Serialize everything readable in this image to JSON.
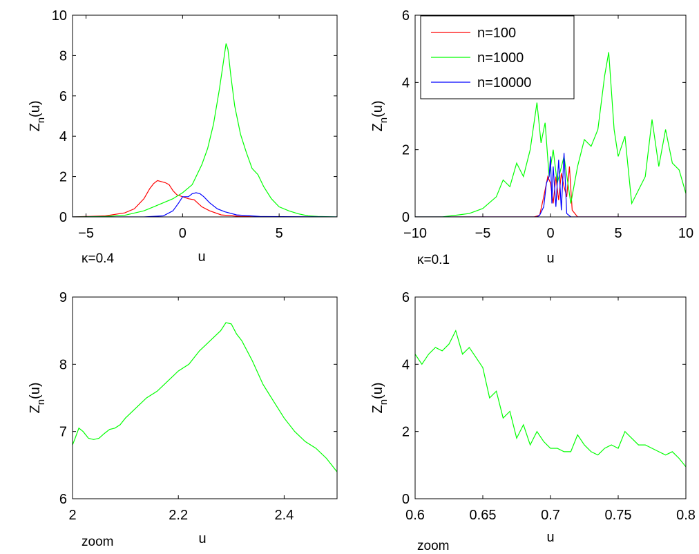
{
  "chart_data": [
    {
      "type": "line",
      "ylabel": "Z_n(u)",
      "xlabel": "u",
      "annotation": "κ=0.4",
      "xlim": [
        -5.7,
        8
      ],
      "ylim": [
        0,
        10
      ],
      "xticks": [
        -5,
        0,
        5
      ],
      "yticks": [
        0,
        2,
        4,
        6,
        8,
        10
      ],
      "grid": false,
      "series": [
        {
          "color": "#ff0000",
          "x": [
            -5.7,
            -4,
            -3,
            -2.5,
            -2,
            -1.7,
            -1.5,
            -1.3,
            -1.1,
            -0.9,
            -0.7,
            -0.5,
            -0.3,
            0,
            0.3,
            0.6,
            1,
            1.4,
            2,
            3,
            4
          ],
          "values": [
            0,
            0.05,
            0.2,
            0.4,
            0.9,
            1.4,
            1.65,
            1.8,
            1.75,
            1.7,
            1.6,
            1.3,
            1.1,
            1.0,
            0.9,
            0.85,
            0.5,
            0.3,
            0.1,
            0.02,
            0
          ]
        },
        {
          "color": "#00ff00",
          "x": [
            -5.7,
            -4,
            -3,
            -2,
            -1.5,
            -1,
            -0.5,
            0,
            0.5,
            1,
            1.3,
            1.6,
            1.9,
            2.1,
            2.25,
            2.35,
            2.5,
            2.7,
            3,
            3.3,
            3.6,
            3.9,
            4.2,
            4.6,
            5,
            5.5,
            6,
            6.5,
            7,
            8
          ],
          "values": [
            0,
            0.02,
            0.08,
            0.3,
            0.5,
            0.7,
            0.9,
            1.2,
            1.6,
            2.6,
            3.4,
            4.6,
            6.3,
            7.6,
            8.6,
            8.3,
            7.0,
            5.5,
            4.1,
            3.2,
            2.4,
            2.1,
            1.5,
            0.9,
            0.5,
            0.3,
            0.15,
            0.05,
            0.02,
            0
          ]
        },
        {
          "color": "#0000ff",
          "x": [
            -5.7,
            -2,
            -1,
            -0.5,
            -0.2,
            0,
            0.3,
            0.5,
            0.7,
            0.9,
            1.1,
            1.4,
            1.8,
            2.2,
            2.8,
            4,
            8
          ],
          "values": [
            0,
            0,
            0.05,
            0.3,
            0.7,
            1.0,
            1.0,
            1.15,
            1.2,
            1.15,
            1.0,
            0.7,
            0.4,
            0.25,
            0.1,
            0.02,
            0
          ]
        }
      ]
    },
    {
      "type": "line",
      "ylabel": "Z_n(u)",
      "xlabel": "u",
      "annotation": "κ=0.1",
      "xlim": [
        -10,
        10
      ],
      "ylim": [
        0,
        6
      ],
      "xticks": [
        -10,
        -5,
        0,
        5,
        10
      ],
      "yticks": [
        0,
        2,
        4,
        6
      ],
      "grid": false,
      "legend_position": "top-left",
      "series": [
        {
          "name": "n=100",
          "color": "#ff0000",
          "x": [
            -10,
            -1.2,
            -0.8,
            -0.5,
            -0.2,
            0,
            0.2,
            0.4,
            0.6,
            0.8,
            1,
            1.2,
            1.4,
            1.6,
            2,
            10
          ],
          "values": [
            0,
            0,
            0.05,
            0.6,
            1.2,
            1.0,
            0.4,
            1.2,
            0.5,
            1.3,
            0.9,
            0.6,
            1.5,
            0.2,
            0,
            0
          ]
        },
        {
          "name": "n=1000",
          "color": "#00ff00",
          "x": [
            -10,
            -8,
            -7,
            -6,
            -5,
            -4,
            -3.5,
            -3,
            -2.5,
            -2,
            -1.5,
            -1,
            -0.7,
            -0.4,
            -0.1,
            0.2,
            0.5,
            1,
            1.5,
            2,
            2.5,
            3,
            3.5,
            4,
            4.3,
            4.7,
            5,
            5.5,
            6,
            6.5,
            7,
            7.5,
            8,
            8.5,
            9,
            9.5,
            10
          ],
          "values": [
            0,
            0,
            0.05,
            0.1,
            0.25,
            0.6,
            1.1,
            0.9,
            1.6,
            1.2,
            2.0,
            3.4,
            2.2,
            2.8,
            1.2,
            2.0,
            1.0,
            1.8,
            0.4,
            1.5,
            2.3,
            2.1,
            2.6,
            4.2,
            4.9,
            2.6,
            1.8,
            2.4,
            0.4,
            0.8,
            1.2,
            2.9,
            1.5,
            2.6,
            1.6,
            1.4,
            0.7
          ]
        },
        {
          "name": "n=10000",
          "color": "#0000ff",
          "x": [
            -10,
            -1,
            -0.8,
            -0.5,
            -0.3,
            -0.1,
            0,
            0.1,
            0.2,
            0.4,
            0.6,
            0.8,
            1,
            1.2,
            1.5,
            10
          ],
          "values": [
            0,
            0,
            0.05,
            0.3,
            1.0,
            1.2,
            1.8,
            0.4,
            1.5,
            0.3,
            1.7,
            0.2,
            1.9,
            0.1,
            0,
            0
          ]
        }
      ]
    },
    {
      "type": "line",
      "ylabel": "Z_n(u)",
      "xlabel": "u",
      "annotation": "zoom",
      "xlim": [
        2,
        2.5
      ],
      "ylim": [
        6,
        9
      ],
      "xticks": [
        2,
        2.2,
        2.4
      ],
      "yticks": [
        6,
        7,
        8,
        9
      ],
      "grid": false,
      "series": [
        {
          "color": "#00ff00",
          "x": [
            2,
            2.005,
            2.012,
            2.02,
            2.03,
            2.04,
            2.05,
            2.06,
            2.07,
            2.08,
            2.09,
            2.1,
            2.12,
            2.14,
            2.16,
            2.18,
            2.2,
            2.22,
            2.24,
            2.26,
            2.28,
            2.29,
            2.3,
            2.31,
            2.32,
            2.34,
            2.36,
            2.38,
            2.4,
            2.42,
            2.44,
            2.46,
            2.48,
            2.5
          ],
          "values": [
            6.8,
            6.9,
            7.05,
            7.0,
            6.9,
            6.88,
            6.9,
            6.97,
            7.03,
            7.05,
            7.1,
            7.2,
            7.35,
            7.5,
            7.6,
            7.75,
            7.9,
            8.0,
            8.2,
            8.35,
            8.5,
            8.62,
            8.6,
            8.45,
            8.35,
            8.05,
            7.7,
            7.45,
            7.2,
            7.0,
            6.85,
            6.75,
            6.6,
            6.4
          ]
        }
      ]
    },
    {
      "type": "line",
      "ylabel": "Z_n(u)",
      "xlabel": "u",
      "annotation": "zoom",
      "xlim": [
        0.6,
        0.8
      ],
      "ylim": [
        0,
        6
      ],
      "xticks": [
        0.6,
        0.65,
        0.7,
        0.75,
        0.8
      ],
      "yticks": [
        0,
        2,
        4,
        6
      ],
      "grid": false,
      "series": [
        {
          "color": "#00ff00",
          "x": [
            0.6,
            0.605,
            0.61,
            0.615,
            0.62,
            0.625,
            0.63,
            0.635,
            0.64,
            0.645,
            0.65,
            0.655,
            0.66,
            0.665,
            0.67,
            0.675,
            0.68,
            0.685,
            0.69,
            0.695,
            0.7,
            0.705,
            0.71,
            0.715,
            0.72,
            0.725,
            0.73,
            0.735,
            0.74,
            0.745,
            0.75,
            0.755,
            0.76,
            0.765,
            0.77,
            0.775,
            0.78,
            0.785,
            0.79,
            0.795,
            0.8
          ],
          "values": [
            4.3,
            4.0,
            4.3,
            4.5,
            4.4,
            4.6,
            5.0,
            4.3,
            4.5,
            4.2,
            3.9,
            3.0,
            3.2,
            2.4,
            2.6,
            1.8,
            2.2,
            1.6,
            2.0,
            1.7,
            1.5,
            1.5,
            1.4,
            1.4,
            1.9,
            1.6,
            1.4,
            1.3,
            1.5,
            1.6,
            1.5,
            2.0,
            1.8,
            1.6,
            1.6,
            1.5,
            1.4,
            1.3,
            1.4,
            1.2,
            0.95
          ]
        }
      ]
    }
  ]
}
